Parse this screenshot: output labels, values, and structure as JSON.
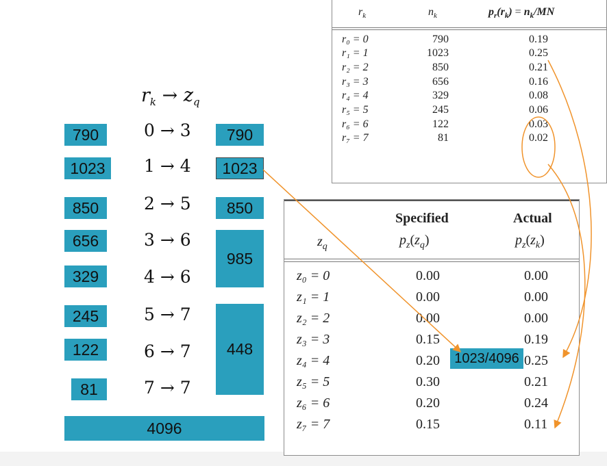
{
  "mapping_header": "r_k → z_q",
  "left_values": [
    "790",
    "1023",
    "850",
    "656",
    "329",
    "245",
    "122",
    "81"
  ],
  "mappings": [
    "0 → 3",
    "1 → 4",
    "2 → 5",
    "3 → 6",
    "4 → 6",
    "5 → 7",
    "6 → 7",
    "7 → 7"
  ],
  "right_values": [
    "790",
    "1023",
    "850",
    "985",
    "448"
  ],
  "total": "4096",
  "highlight_label": "1023/4096",
  "table1": {
    "headers": [
      "r_k",
      "n_k",
      "p_r(r_k) = n_k/MN"
    ],
    "rows": [
      {
        "r": "r₀ = 0",
        "n": "790",
        "p": "0.19"
      },
      {
        "r": "r₁ = 1",
        "n": "1023",
        "p": "0.25"
      },
      {
        "r": "r₂ = 2",
        "n": "850",
        "p": "0.21"
      },
      {
        "r": "r₃ = 3",
        "n": "656",
        "p": "0.16"
      },
      {
        "r": "r₄ = 4",
        "n": "329",
        "p": "0.08"
      },
      {
        "r": "r₅ = 5",
        "n": "245",
        "p": "0.06"
      },
      {
        "r": "r₆ = 6",
        "n": "122",
        "p": "0.03"
      },
      {
        "r": "r₇ = 7",
        "n": "81",
        "p": "0.02"
      }
    ]
  },
  "table2": {
    "header_specified": "Specified",
    "header_actual": "Actual",
    "col_zq": "z_q",
    "col_spec": "p_z(z_q)",
    "col_act": "p_z(z_k)",
    "rows": [
      {
        "z": "z₀ = 0",
        "spec": "0.00",
        "act": "0.00"
      },
      {
        "z": "z₁ = 1",
        "spec": "0.00",
        "act": "0.00"
      },
      {
        "z": "z₂ = 2",
        "spec": "0.00",
        "act": "0.00"
      },
      {
        "z": "z₃ = 3",
        "spec": "0.15",
        "act": "0.19"
      },
      {
        "z": "z₄ = 4",
        "spec": "0.20",
        "act": "0.25"
      },
      {
        "z": "z₅ = 5",
        "spec": "0.30",
        "act": "0.21"
      },
      {
        "z": "z₆ = 6",
        "spec": "0.20",
        "act": "0.24"
      },
      {
        "z": "z₇ = 7",
        "spec": "0.15",
        "act": "0.11"
      }
    ]
  },
  "colors": {
    "box": "#2a9fbd",
    "arrow": "#f0932b"
  }
}
